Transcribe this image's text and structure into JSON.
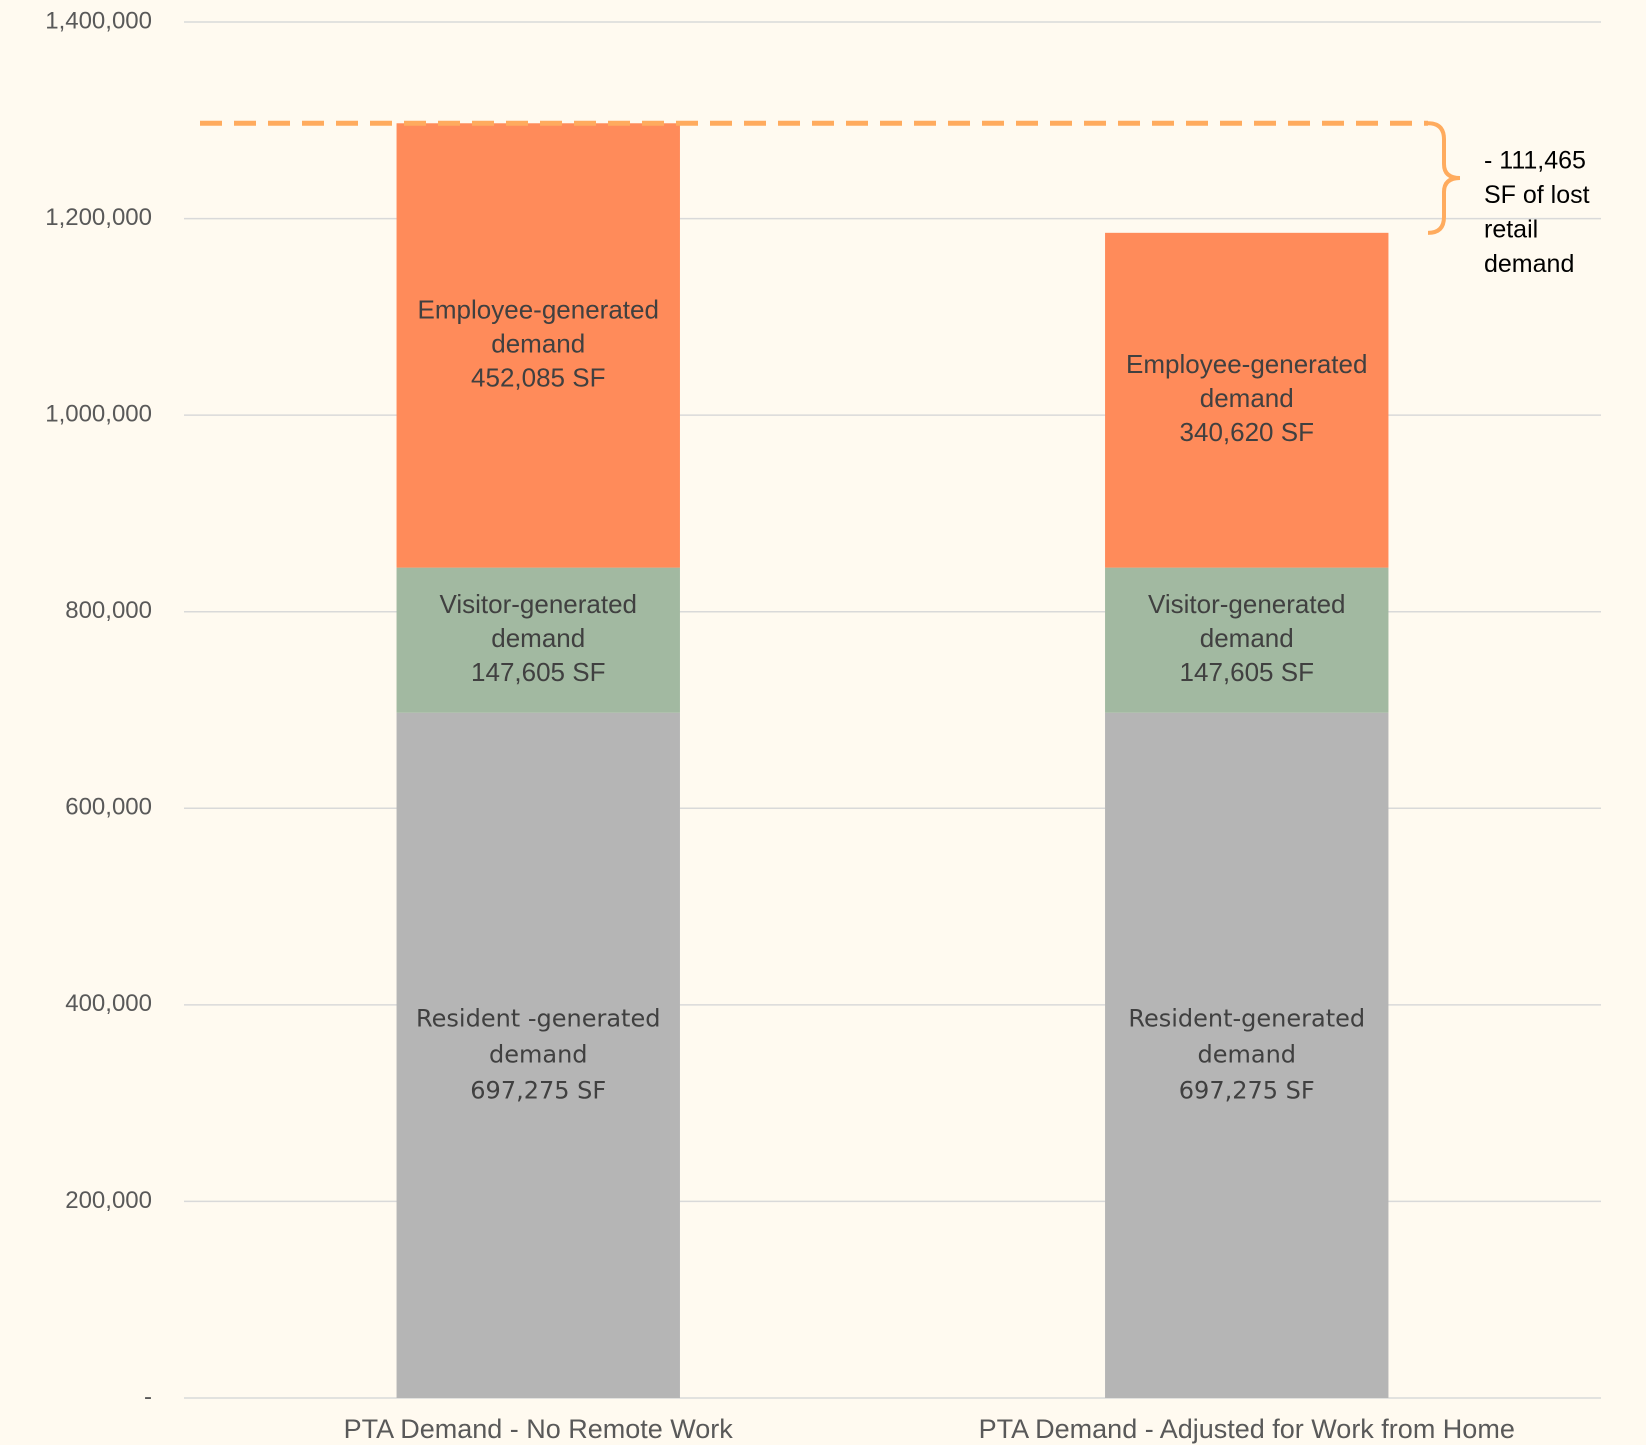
{
  "chart_data": {
    "type": "stacked_bar",
    "categories": [
      "PTA Demand - No Remote Work",
      "PTA Demand - Adjusted for Work from Home"
    ],
    "series": [
      {
        "color": "#b5b5b5",
        "values": [
          697275,
          697275
        ],
        "value_labels": [
          [
            "Resident -generated",
            "demand",
            "697,275  SF"
          ],
          [
            "Resident-generated",
            "demand",
            "697,275 SF"
          ]
        ]
      },
      {
        "color": "#a2b9a1",
        "values": [
          147605,
          147605
        ],
        "value_labels": [
          [
            "Visitor-generated",
            "demand",
            "147,605  SF"
          ],
          [
            "Visitor-generated",
            "demand",
            "147,605 SF"
          ]
        ]
      },
      {
        "color": "#ff8b5a",
        "values": [
          452085,
          340620
        ],
        "value_labels": [
          [
            "Employee-generated",
            "demand",
            "452,085  SF"
          ],
          [
            "Employee-generated",
            "demand",
            "340,620 SF"
          ]
        ]
      }
    ],
    "ylim": [
      0,
      1400000
    ],
    "yticks": [
      {
        "value": 0,
        "label": "-"
      },
      {
        "value": 200000,
        "label": "200,000"
      },
      {
        "value": 400000,
        "label": "400,000"
      },
      {
        "value": 600000,
        "label": "600,000"
      },
      {
        "value": 800000,
        "label": "800,000"
      },
      {
        "value": 1000000,
        "label": "1,000,000"
      },
      {
        "value": 1200000,
        "label": "1,200,000"
      },
      {
        "value": 1400000,
        "label": "1,400,000"
      }
    ],
    "grid": true,
    "reference_line": 1296965,
    "reference_color": "#ffab5e",
    "annotation": [
      "- 111,465",
      "SF of lost",
      "retail",
      "demand"
    ]
  }
}
